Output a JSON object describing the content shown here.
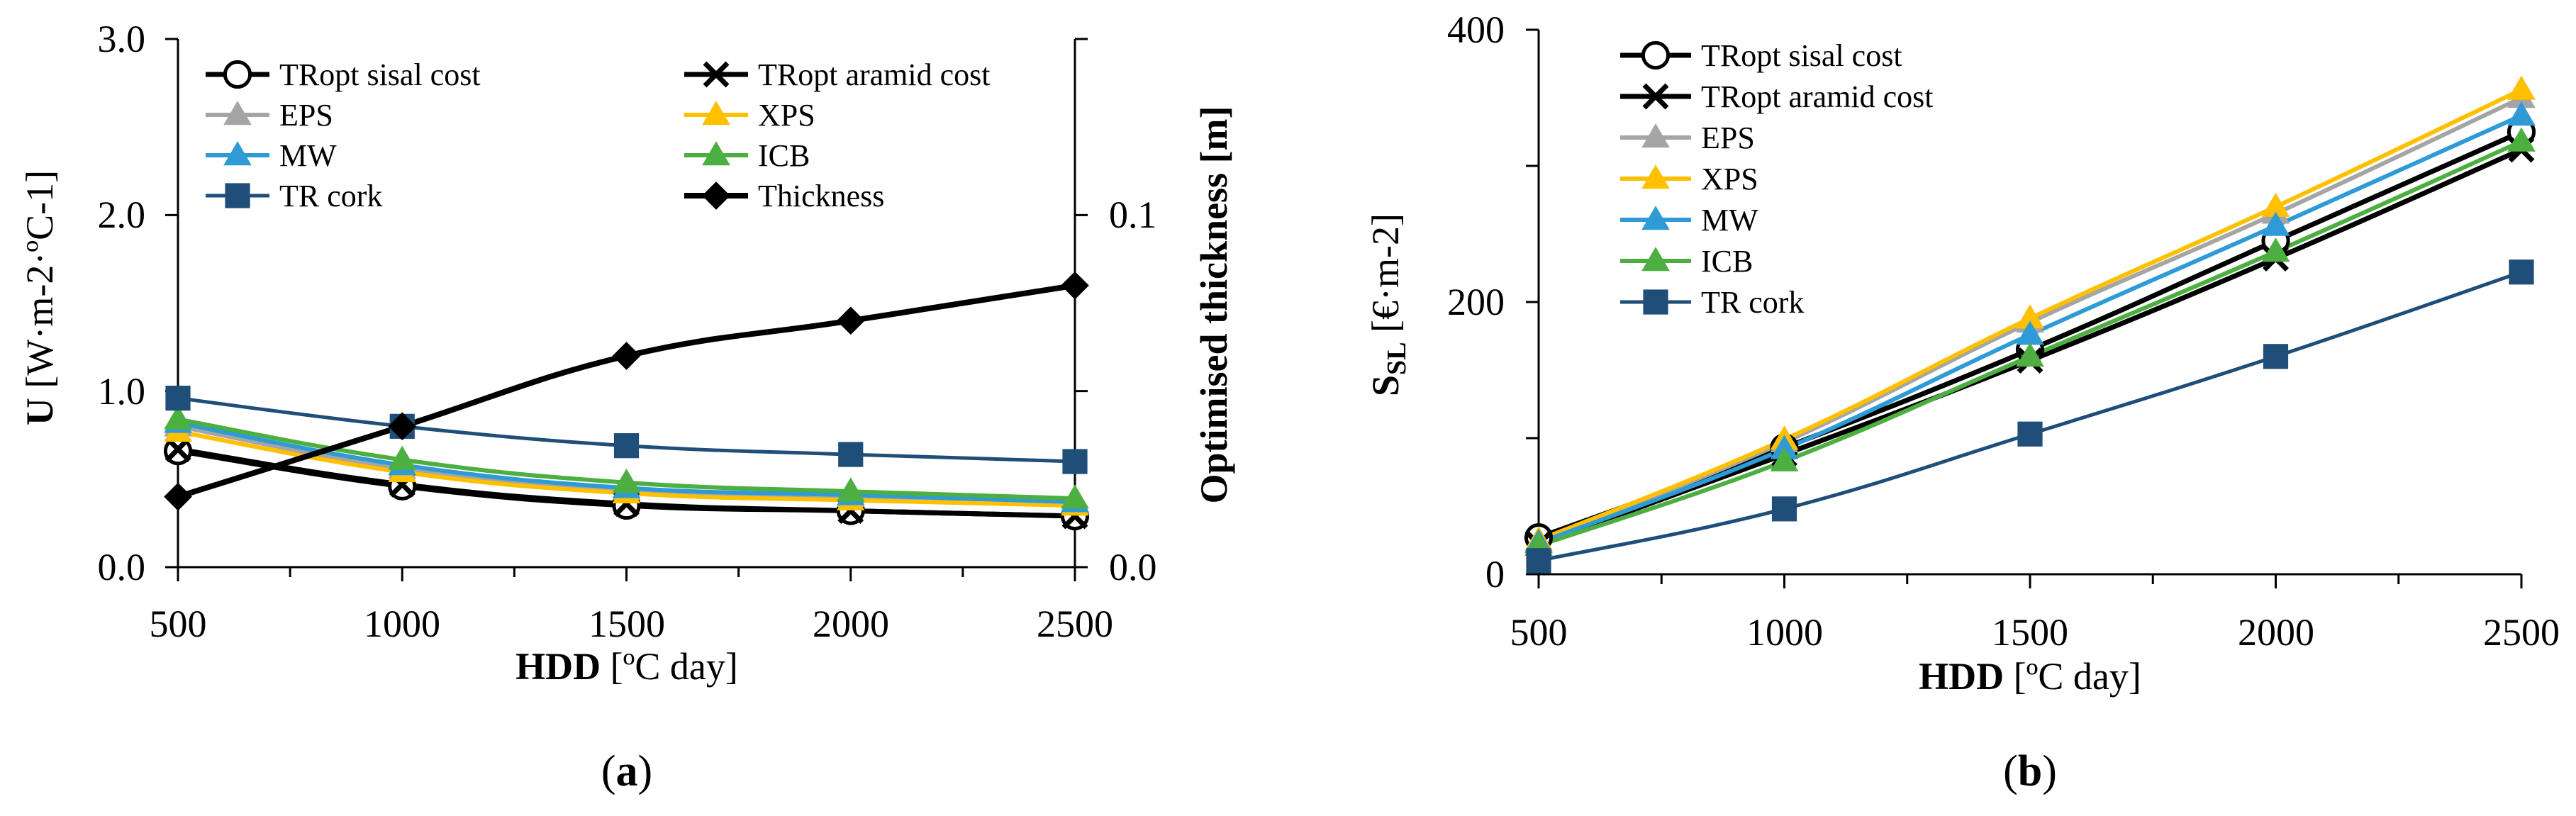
{
  "colors": {
    "sisal": "#000000",
    "aramid": "#000000",
    "EPS": "#a5a5a5",
    "XPS": "#ffc000",
    "MW": "#2e9bd6",
    "ICB": "#4caf3f",
    "cork": "#1f4e79",
    "thickness": "#000000"
  },
  "chart_data": [
    {
      "type": "line",
      "panel_label": "(a)",
      "xlabel": {
        "bold": "HDD",
        "rest": " [ºC day]"
      },
      "ylabel": {
        "bold": "U",
        "rest": " [W·m-2·ºC-1]"
      },
      "y2label": "Optimised thickness [m]",
      "x": [
        500,
        1000,
        1500,
        2000,
        2500
      ],
      "xlim": [
        500,
        2500
      ],
      "ylim": [
        0,
        3
      ],
      "y2lim": [
        0,
        0.15
      ],
      "xticks": [
        "500",
        "1000",
        "1500",
        "2000",
        "2500"
      ],
      "yticks": [
        "0.0",
        "1.0",
        "2.0",
        "3.0"
      ],
      "y2ticks": [
        "0.0",
        "0.1"
      ],
      "legend_position": "top",
      "series": [
        {
          "name": "TRopt sisal cost",
          "key": "sisal",
          "marker": "circle",
          "axis": "y",
          "values": [
            0.66,
            0.46,
            0.35,
            0.32,
            0.29
          ]
        },
        {
          "name": "TRopt aramid cost",
          "key": "aramid",
          "marker": "x",
          "axis": "y",
          "values": [
            0.67,
            0.47,
            0.36,
            0.32,
            0.29
          ]
        },
        {
          "name": "EPS",
          "key": "EPS",
          "marker": "triangle",
          "axis": "y",
          "values": [
            0.8,
            0.56,
            0.44,
            0.4,
            0.36
          ]
        },
        {
          "name": "XPS",
          "key": "XPS",
          "marker": "triangle",
          "axis": "y",
          "values": [
            0.77,
            0.54,
            0.42,
            0.38,
            0.35
          ]
        },
        {
          "name": "MW",
          "key": "MW",
          "marker": "triangle",
          "axis": "y",
          "values": [
            0.82,
            0.58,
            0.45,
            0.41,
            0.37
          ]
        },
        {
          "name": "ICB",
          "key": "ICB",
          "marker": "triangle",
          "axis": "y",
          "values": [
            0.84,
            0.61,
            0.48,
            0.43,
            0.39
          ]
        },
        {
          "name": "TR cork",
          "key": "cork",
          "marker": "square",
          "axis": "y",
          "values": [
            0.96,
            0.8,
            0.69,
            0.64,
            0.6
          ]
        },
        {
          "name": "Thickness",
          "key": "thickness",
          "marker": "diamond",
          "axis": "y2",
          "values": [
            0.02,
            0.04,
            0.06,
            0.07,
            0.08
          ]
        }
      ]
    },
    {
      "type": "line",
      "panel_label": "(b)",
      "xlabel": {
        "bold": "HDD",
        "rest": " [ºC day]"
      },
      "ylabel": {
        "bold": "S",
        "sub": "SL",
        "rest": " [€·m-2]"
      },
      "x": [
        500,
        1000,
        1500,
        2000,
        2500
      ],
      "xlim": [
        500,
        2500
      ],
      "ylim": [
        0,
        400
      ],
      "xticks": [
        "500",
        "1000",
        "1500",
        "2000",
        "2500"
      ],
      "yticks": [
        "0",
        "200",
        "400"
      ],
      "legend_position": "top-left",
      "series": [
        {
          "name": "TRopt sisal cost",
          "key": "sisal",
          "marker": "circle",
          "values": [
            27,
            93,
            165,
            245,
            325
          ]
        },
        {
          "name": "TRopt aramid cost",
          "key": "aramid",
          "marker": "x",
          "values": [
            22,
            88,
            157,
            232,
            312
          ]
        },
        {
          "name": "EPS",
          "key": "EPS",
          "marker": "triangle",
          "values": [
            24,
            97,
            185,
            265,
            350
          ]
        },
        {
          "name": "XPS",
          "key": "XPS",
          "marker": "triangle",
          "values": [
            25,
            99,
            188,
            270,
            356
          ]
        },
        {
          "name": "MW",
          "key": "MW",
          "marker": "triangle",
          "values": [
            23,
            92,
            176,
            256,
            337
          ]
        },
        {
          "name": "ICB",
          "key": "ICB",
          "marker": "triangle",
          "values": [
            21,
            83,
            160,
            237,
            318
          ]
        },
        {
          "name": "TR cork",
          "key": "cork",
          "marker": "square",
          "values": [
            10,
            48,
            103,
            160,
            222
          ]
        }
      ]
    }
  ]
}
